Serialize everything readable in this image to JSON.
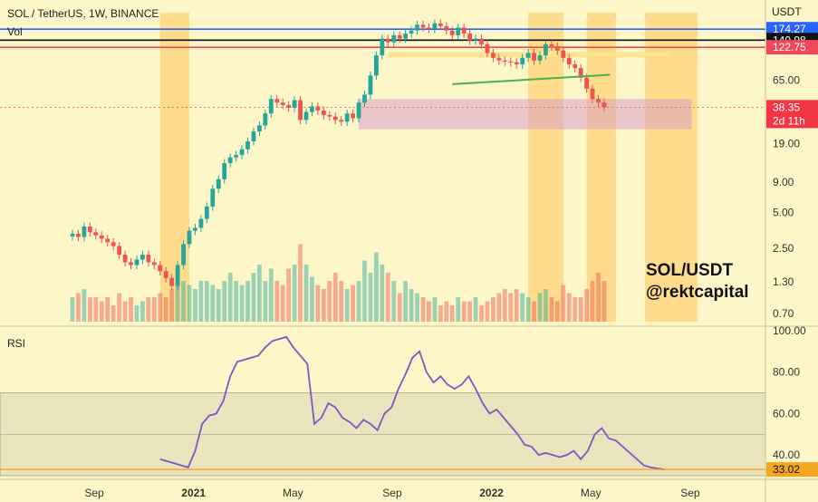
{
  "header": {
    "symbol_line": "SOL / TetherUS, 1W, BINANCE",
    "volume_label": "Vol",
    "rsi_label": "RSI",
    "price_unit": "USDT"
  },
  "watermark": {
    "line1": "SOL/USDT",
    "line2": "@rektcapital"
  },
  "colors": {
    "background": "#fdf6c9",
    "up": "#26a69a",
    "down": "#ef5350",
    "highlight": "#ffc658",
    "range_box": "#d9a0c8",
    "rsi_line": "#7e57c2",
    "rsi_band": "#d8d4b4",
    "resistance_blue": "#2962ff",
    "resistance_red": "#f04a5a",
    "support_green": "#4caf50",
    "zone_yellow": "#ffe28a",
    "current_price_tag": "#f23645",
    "rsi_tag": "#f5a623"
  },
  "chart_data": [
    {
      "type": "candlestick",
      "title": "SOL / TetherUS, 1W, BINANCE",
      "y_scale": "log",
      "ylim": [
        0.6,
        240
      ],
      "y_ticks": [
        174.27,
        140.98,
        122.75,
        65.0,
        38.35,
        19.0,
        9.0,
        5.0,
        2.5,
        1.3,
        0.7
      ],
      "y_tick_labels": [
        "174.27",
        "140.98",
        "122.75",
        "65.00",
        "38.35",
        "19.00",
        "9.00",
        "5.00",
        "2.50",
        "1.30",
        "0.70"
      ],
      "x_ticks": [
        "Sep",
        "2021",
        "May",
        "Sep",
        "2022",
        "May",
        "Sep"
      ],
      "x_ticks_week": [
        0,
        17,
        34,
        51,
        68,
        85,
        102
      ],
      "current_price": "38.35",
      "countdown": "2d 11h",
      "candles_week_start": 0,
      "closes": [
        3.3,
        3.1,
        3.8,
        3.4,
        3.2,
        3.0,
        2.8,
        2.6,
        2.2,
        1.9,
        1.8,
        2.0,
        2.2,
        1.9,
        1.8,
        1.6,
        1.4,
        1.2,
        1.8,
        2.7,
        3.5,
        3.7,
        4.4,
        5.6,
        7.9,
        9.5,
        13.0,
        14.5,
        15.2,
        17.0,
        19.8,
        24.0,
        27.0,
        34.0,
        45.0,
        42.0,
        40.0,
        38.0,
        44.0,
        30.0,
        35.0,
        39.0,
        36.0,
        33.0,
        32.0,
        30.0,
        29.0,
        34.0,
        31.0,
        42.0,
        49.0,
        71.0,
        105.0,
        145.0,
        135.0,
        155.0,
        145.0,
        160.0,
        170.0,
        190.0,
        180.0,
        175.0,
        195.0,
        185.0,
        170.0,
        155.0,
        180.0,
        160.0,
        140.0,
        145.0,
        130.0,
        110.0,
        100.0,
        95.0,
        93.0,
        92.0,
        88.0,
        100.0,
        110.0,
        95.0,
        105.0,
        130.0,
        125.0,
        115.0,
        100.0,
        88.0,
        82.0,
        68.0,
        55.0,
        45.0,
        42.0,
        38.35
      ],
      "volume_rel": [
        0.3,
        0.35,
        0.4,
        0.3,
        0.3,
        0.25,
        0.3,
        0.2,
        0.35,
        0.25,
        0.3,
        0.2,
        0.25,
        0.3,
        0.3,
        0.35,
        0.3,
        0.4,
        0.45,
        0.5,
        0.45,
        0.4,
        0.5,
        0.5,
        0.45,
        0.4,
        0.5,
        0.6,
        0.5,
        0.45,
        0.5,
        0.6,
        0.7,
        0.5,
        0.65,
        0.5,
        0.45,
        0.65,
        0.7,
        0.95,
        0.7,
        0.55,
        0.45,
        0.4,
        0.5,
        0.6,
        0.5,
        0.4,
        0.45,
        0.5,
        0.75,
        0.6,
        0.85,
        0.7,
        0.6,
        0.5,
        0.35,
        0.5,
        0.4,
        0.35,
        0.3,
        0.25,
        0.3,
        0.2,
        0.25,
        0.2,
        0.3,
        0.25,
        0.25,
        0.3,
        0.2,
        0.25,
        0.3,
        0.35,
        0.4,
        0.35,
        0.4,
        0.35,
        0.3,
        0.25,
        0.35,
        0.4,
        0.3,
        0.25,
        0.45,
        0.35,
        0.3,
        0.3,
        0.4,
        0.5,
        0.6,
        0.5
      ],
      "horizontal_levels": [
        {
          "price": 174.27,
          "color": "#2962ff"
        },
        {
          "price": 140.98,
          "color": "#111111"
        },
        {
          "price": 122.75,
          "color": "#f04a5a"
        },
        {
          "price": 38.35,
          "color": "#f04a5a"
        }
      ],
      "highlight_zones_weeks": [
        [
          15,
          20
        ],
        [
          78,
          84
        ],
        [
          88,
          93
        ],
        [
          98,
          107
        ]
      ],
      "range_box": {
        "week_from": 49,
        "week_to": 148,
        "price_high": 45.0,
        "price_low": 25.0
      }
    },
    {
      "type": "line",
      "title": "RSI",
      "ylim": [
        30,
        100
      ],
      "y_ticks": [
        100,
        80,
        60,
        40
      ],
      "y_tick_labels": [
        "100.00",
        "80.00",
        "60.00",
        "40.00"
      ],
      "band": [
        30,
        70
      ],
      "midline": 50,
      "current_value": "33.02",
      "x_week_start": 15,
      "values": [
        38,
        37,
        36,
        35,
        34,
        42,
        55,
        59,
        60,
        66,
        78,
        85,
        86,
        87,
        88,
        92,
        95,
        96,
        97,
        92,
        88,
        84,
        55,
        58,
        65,
        63,
        58,
        56,
        53,
        57,
        55,
        52,
        60,
        63,
        72,
        79,
        87,
        90,
        80,
        75,
        78,
        74,
        72,
        74,
        78,
        72,
        65,
        60,
        62,
        58,
        54,
        50,
        45,
        44,
        40,
        41,
        40,
        39,
        40,
        42,
        38,
        42,
        50,
        53,
        48,
        47,
        44,
        41,
        38,
        35,
        34,
        33.5,
        33.02
      ]
    }
  ]
}
